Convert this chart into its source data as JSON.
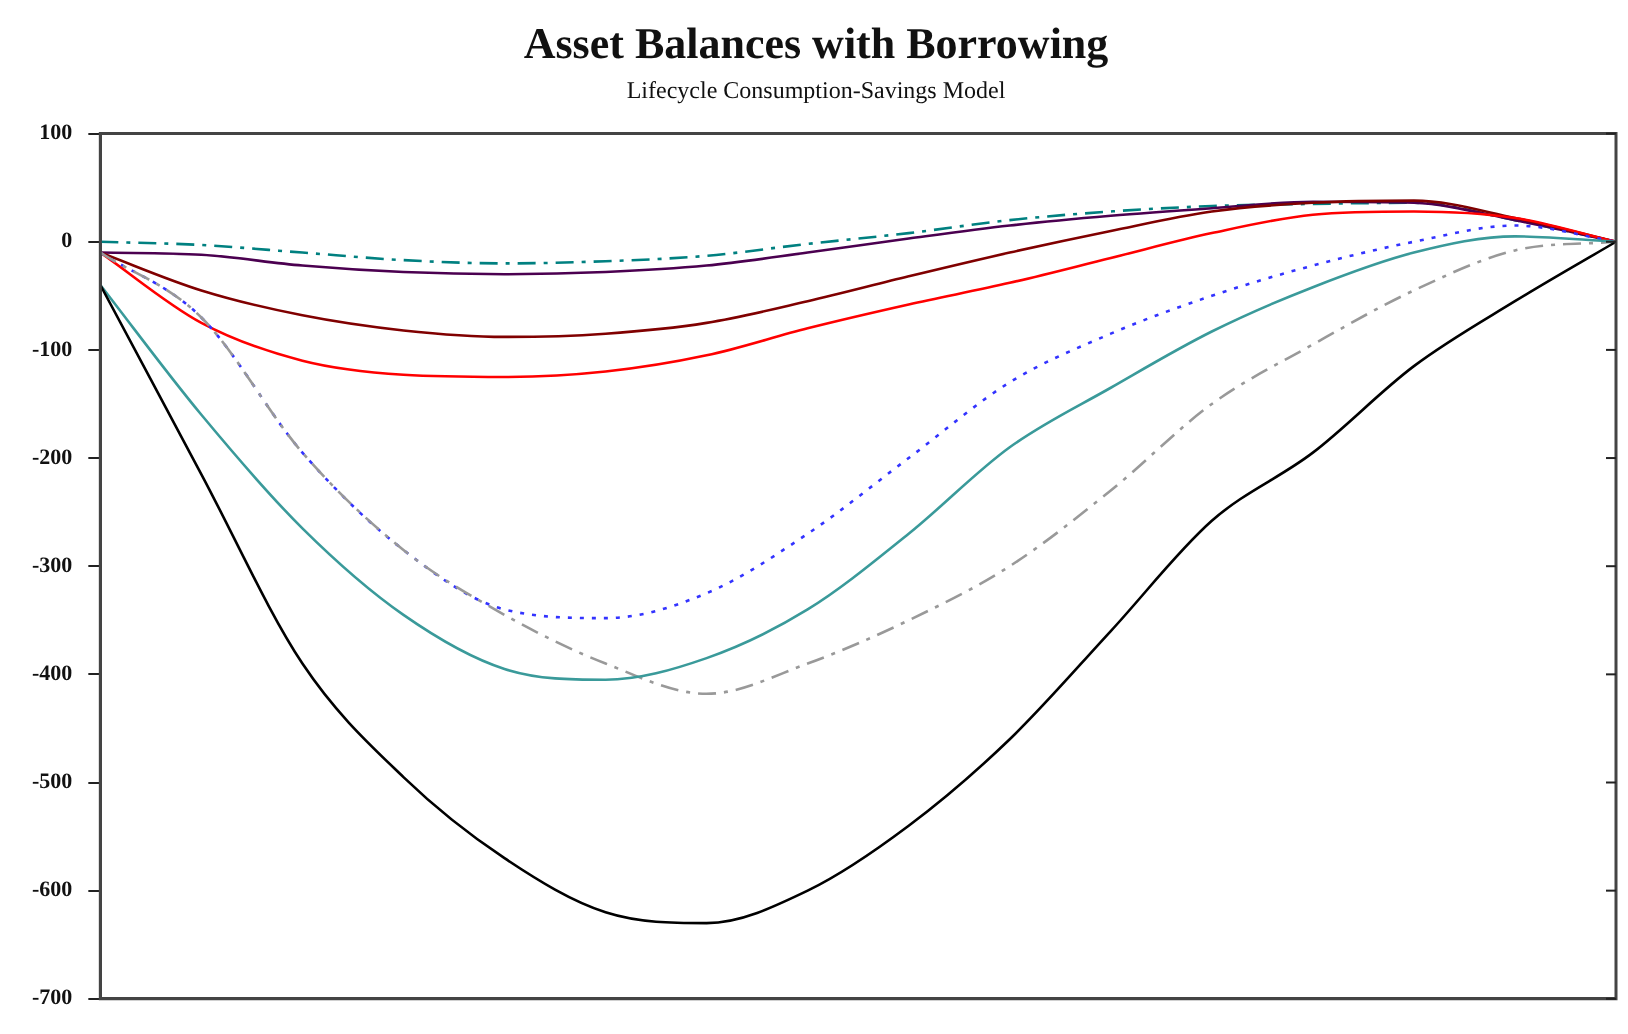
{
  "chart_data": {
    "type": "line",
    "title": "Asset Balances with Borrowing",
    "subtitle": "Lifecycle Consumption-Savings Model",
    "categories": [
      null,
      null,
      null,
      null,
      null,
      null,
      null,
      null,
      null,
      null,
      null,
      null,
      null,
      null,
      null,
      null
    ],
    "series": [
      {
        "color": "#000000",
        "line_style": "solid",
        "values": [
          -40,
          -215,
          -390,
          -495,
          -570,
          -620,
          -630,
          -600,
          -540,
          -460,
          -360,
          -258,
          -195,
          -115,
          -55,
          0
        ]
      },
      {
        "color": "#3a9a9a",
        "line_style": "solid",
        "values": [
          -40,
          -160,
          -265,
          -345,
          -395,
          -405,
          -385,
          -340,
          -270,
          -190,
          -135,
          -83,
          -42,
          -10,
          5,
          0
        ]
      },
      {
        "color": "#999999",
        "line_style": "dashed",
        "values": [
          -10,
          -70,
          -195,
          -285,
          -345,
          -390,
          -418,
          -390,
          -350,
          -300,
          -230,
          -150,
          -95,
          -45,
          -8,
          0
        ]
      },
      {
        "color": "#3333ff",
        "line_style": "dotted",
        "values": [
          -10,
          -70,
          -195,
          -285,
          -340,
          -348,
          -325,
          -270,
          -200,
          -130,
          -85,
          -50,
          -22,
          0,
          15,
          0
        ]
      },
      {
        "color": "#ff0000",
        "line_style": "solid",
        "values": [
          -10,
          -75,
          -110,
          -123,
          -125,
          -120,
          -105,
          -80,
          -58,
          -38,
          -15,
          8,
          25,
          28,
          22,
          0
        ]
      },
      {
        "color": "#800000",
        "line_style": "solid",
        "values": [
          -10,
          -45,
          -68,
          -82,
          -88,
          -85,
          -75,
          -55,
          -32,
          -10,
          10,
          28,
          36,
          38,
          22,
          0
        ]
      },
      {
        "color": "#4b0050",
        "line_style": "solid",
        "values": [
          -10,
          -12,
          -22,
          -28,
          -30,
          -28,
          -22,
          -10,
          3,
          15,
          24,
          31,
          37,
          36,
          20,
          0
        ]
      },
      {
        "color": "#008080",
        "line_style": "dashed",
        "values": [
          0,
          -3,
          -10,
          -17,
          -20,
          -18,
          -13,
          -2,
          8,
          20,
          28,
          33,
          35,
          36,
          20,
          0
        ]
      }
    ],
    "ylim": [
      -700,
      100
    ],
    "yticks": [
      -700,
      -600,
      -500,
      -400,
      -300,
      -200,
      -100,
      0,
      100
    ],
    "tick_labels": "y",
    "grid": false,
    "legend": false,
    "marker": "none"
  }
}
